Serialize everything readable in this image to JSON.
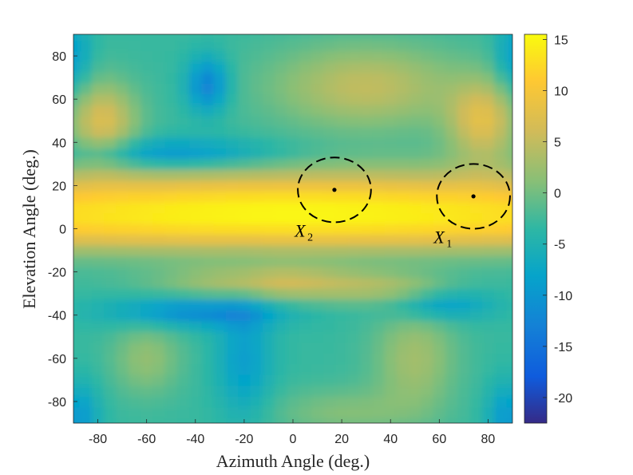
{
  "chart_data": {
    "type": "heatmap",
    "xlabel": "Azimuth Angle (deg.)",
    "ylabel": "Elevation Angle (deg.)",
    "xlim": [
      -90,
      90
    ],
    "ylim": [
      -90,
      90
    ],
    "x_ticks": [
      "-80",
      "-60",
      "-40",
      "-20",
      "0",
      "20",
      "40",
      "60",
      "80"
    ],
    "y_ticks": [
      "80",
      "60",
      "40",
      "20",
      "0",
      "-20",
      "-40",
      "-60",
      "-80"
    ],
    "colorbar": {
      "range": [
        -22.5,
        15.5
      ],
      "ticks": [
        "15",
        "10",
        "5",
        "0",
        "-5",
        "-10",
        "-15",
        "-20"
      ],
      "colormap": "parula"
    },
    "features": [
      {
        "desc": "main beam band",
        "elevation": 10,
        "peak_value": 15
      },
      {
        "desc": "sidelobe band",
        "elevation": -25,
        "peak_value": 10
      },
      {
        "desc": "side lobes",
        "azimuth": -78,
        "elevation": 50,
        "peak_value": 7
      },
      {
        "desc": "side lobes",
        "azimuth": 78,
        "elevation": 50,
        "peak_value": 7
      },
      {
        "desc": "deep null",
        "azimuth": -33,
        "elevation": 67,
        "peak_value": -22
      }
    ],
    "regions": [
      {
        "label_main": "X",
        "label_sub": "2",
        "center": [
          17,
          18
        ],
        "radius_az": 15,
        "radius_el": 15
      },
      {
        "label_main": "X",
        "label_sub": "1",
        "center": [
          74,
          15
        ],
        "radius_az": 15,
        "radius_el": 15
      }
    ],
    "colors": {
      "boundary": "#000000"
    }
  }
}
